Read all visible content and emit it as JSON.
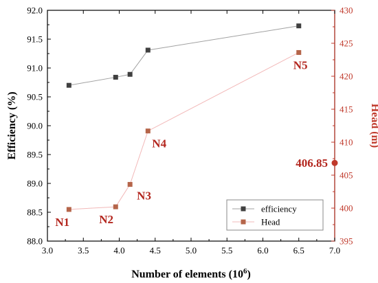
{
  "chart_data": {
    "type": "line",
    "xlabel": "Number of elements (10",
    "xlabel_sup": "6",
    "xlabel_end": ")",
    "ylabel_left": "Efficiency (%)",
    "ylabel_right": "Head (m)",
    "xlim": [
      3.0,
      7.0
    ],
    "ylim_left": [
      88.0,
      92.0
    ],
    "ylim_right": [
      395,
      430
    ],
    "x_ticks": [
      "3.0",
      "3.5",
      "4.0",
      "4.5",
      "5.0",
      "5.5",
      "6.0",
      "6.5",
      "7.0"
    ],
    "y_left_ticks": [
      "88.0",
      "88.5",
      "89.0",
      "89.5",
      "90.0",
      "90.5",
      "91.0",
      "91.5",
      "92.0"
    ],
    "y_right_ticks": [
      "395",
      "400",
      "405",
      "410",
      "415",
      "420",
      "425",
      "430"
    ],
    "legend_position": "bottom-right",
    "series": [
      {
        "name": "efficiency",
        "axis": "left",
        "color": "#404040",
        "line_color": "#a0a0a0",
        "x": [
          3.3,
          3.95,
          4.15,
          4.4,
          6.5
        ],
        "y": [
          90.7,
          90.84,
          90.89,
          91.31,
          91.73
        ]
      },
      {
        "name": "Head",
        "axis": "right",
        "color": "#b5654a",
        "line_color": "#f2b8b8",
        "x": [
          3.3,
          3.95,
          4.15,
          4.4,
          6.5
        ],
        "y": [
          399.8,
          400.2,
          403.6,
          411.7,
          423.6
        ],
        "labels": [
          "N1",
          "N2",
          "N3",
          "N4",
          "N5"
        ]
      }
    ],
    "annotation": {
      "text": "406.85",
      "value": 406.85,
      "axis": "right",
      "color": "#c0392b"
    }
  }
}
